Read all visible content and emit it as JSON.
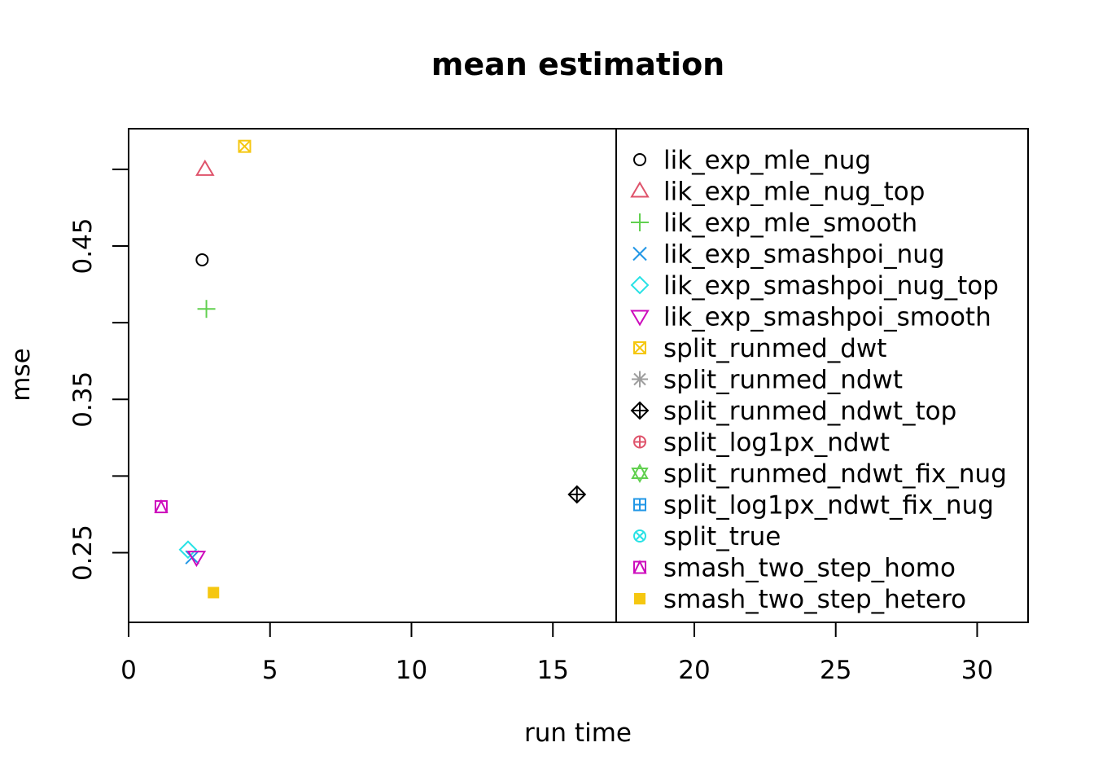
{
  "chart_data": {
    "type": "scatter",
    "title": "mean estimation",
    "xlabel": "run time",
    "ylabel": "mse",
    "xlim": [
      0,
      31.8
    ],
    "ylim": [
      0.2046,
      0.5265
    ],
    "x_ticks": [
      0,
      5,
      10,
      15,
      20,
      25,
      30
    ],
    "x_tick_labels": [
      "0",
      "5",
      "10",
      "15",
      "20",
      "25",
      "30"
    ],
    "y_ticks": [
      0.25,
      0.3,
      0.35,
      0.4,
      0.45,
      0.5
    ],
    "y_tick_labels": [
      "0.25",
      "",
      "0.35",
      "",
      "0.45",
      ""
    ],
    "grid": false,
    "legend_position": "right",
    "series": [
      {
        "name": "lik_exp_mle_nug",
        "symbol": "circle",
        "color": "#000000",
        "x": [
          2.6
        ],
        "y": [
          0.441
        ]
      },
      {
        "name": "lik_exp_mle_nug_top",
        "symbol": "triangle-up",
        "color": "#DF536B",
        "x": [
          2.7
        ],
        "y": [
          0.5
        ]
      },
      {
        "name": "lik_exp_mle_smooth",
        "symbol": "plus",
        "color": "#61D04F",
        "x": [
          2.75
        ],
        "y": [
          0.409
        ]
      },
      {
        "name": "lik_exp_smashpoi_nug",
        "symbol": "cross",
        "color": "#2297E6",
        "x": [
          2.25
        ],
        "y": [
          0.247
        ]
      },
      {
        "name": "lik_exp_smashpoi_nug_top",
        "symbol": "diamond",
        "color": "#28E2E5",
        "x": [
          2.1
        ],
        "y": [
          0.252
        ]
      },
      {
        "name": "lik_exp_smashpoi_smooth",
        "symbol": "triangle-down",
        "color": "#CD0BBC",
        "x": [
          2.4
        ],
        "y": [
          0.247
        ]
      },
      {
        "name": "split_runmed_dwt",
        "symbol": "square-x",
        "color": "#F5C710",
        "x": [
          4.1
        ],
        "y": [
          0.515
        ]
      },
      {
        "name": "split_runmed_ndwt",
        "symbol": "asterisk",
        "color": "#9E9E9E",
        "x": [],
        "y": []
      },
      {
        "name": "split_runmed_ndwt_top",
        "symbol": "diamond-plus",
        "color": "#000000",
        "x": [
          15.85
        ],
        "y": [
          0.288
        ]
      },
      {
        "name": "split_log1px_ndwt",
        "symbol": "circle-plus",
        "color": "#DF536B",
        "x": [],
        "y": []
      },
      {
        "name": "split_runmed_ndwt_fix_nug",
        "symbol": "star-of-david",
        "color": "#61D04F",
        "x": [],
        "y": []
      },
      {
        "name": "split_log1px_ndwt_fix_nug",
        "symbol": "square-plus",
        "color": "#2297E6",
        "x": [],
        "y": []
      },
      {
        "name": "split_true",
        "symbol": "circle-x",
        "color": "#28E2E5",
        "x": [],
        "y": []
      },
      {
        "name": "smash_two_step_homo",
        "symbol": "square-triangle",
        "color": "#CD0BBC",
        "x": [
          1.15
        ],
        "y": [
          0.28
        ]
      },
      {
        "name": "smash_two_step_hetero",
        "symbol": "filled-square",
        "color": "#F5C710",
        "x": [
          3.0
        ],
        "y": [
          0.224
        ]
      }
    ]
  }
}
